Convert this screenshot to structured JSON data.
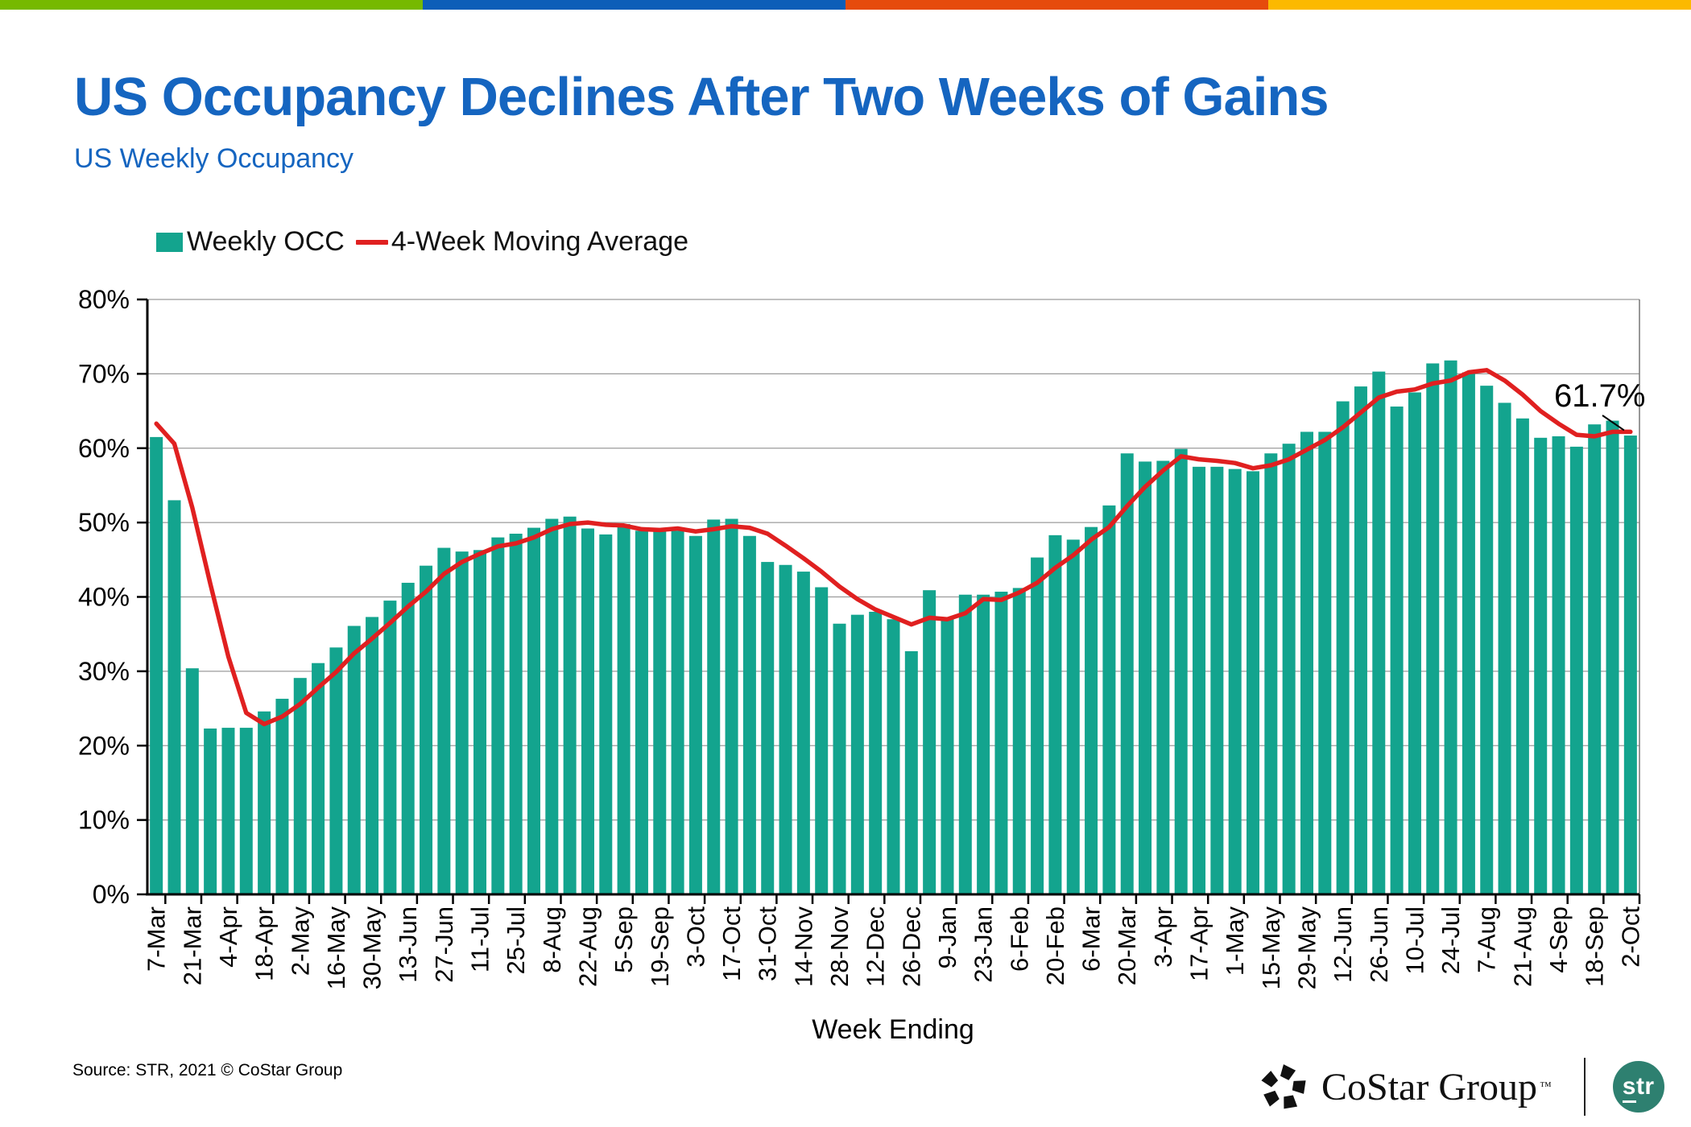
{
  "top_bar": {
    "colors": [
      "#76B900",
      "#0D5EB8",
      "#E64B0C",
      "#FCB900"
    ]
  },
  "header": {
    "title": "US Occupancy Declines After Two Weeks of Gains",
    "subtitle": "US Weekly Occupancy"
  },
  "legend": {
    "items": [
      {
        "label": "Weekly OCC",
        "color": "#13A48E",
        "type": "square"
      },
      {
        "label": "4-Week Moving Average",
        "color": "#E02020",
        "type": "line"
      }
    ]
  },
  "chart_data": {
    "type": "bar",
    "title": "US Weekly Occupancy",
    "xlabel": "Week Ending",
    "ylabel": "",
    "ylim": [
      0,
      80
    ],
    "grid": "horizontal",
    "legend_position": "top-left",
    "y_ticks": [
      "0%",
      "10%",
      "20%",
      "30%",
      "40%",
      "50%",
      "60%",
      "70%",
      "80%"
    ],
    "x_label_every": 2,
    "categories": [
      "7-Mar",
      "14-Mar",
      "21-Mar",
      "28-Mar",
      "4-Apr",
      "11-Apr",
      "18-Apr",
      "25-Apr",
      "2-May",
      "9-May",
      "16-May",
      "23-May",
      "30-May",
      "6-Jun",
      "13-Jun",
      "20-Jun",
      "27-Jun",
      "4-Jul",
      "11-Jul",
      "18-Jul",
      "25-Jul",
      "1-Aug",
      "8-Aug",
      "15-Aug",
      "22-Aug",
      "29-Aug",
      "5-Sep",
      "12-Sep",
      "19-Sep",
      "26-Sep",
      "3-Oct",
      "10-Oct",
      "17-Oct",
      "24-Oct",
      "31-Oct",
      "7-Nov",
      "14-Nov",
      "21-Nov",
      "28-Nov",
      "5-Dec",
      "12-Dec",
      "19-Dec",
      "26-Dec",
      "2-Jan",
      "9-Jan",
      "16-Jan",
      "23-Jan",
      "30-Jan",
      "6-Feb",
      "13-Feb",
      "20-Feb",
      "27-Feb",
      "6-Mar",
      "13-Mar",
      "20-Mar",
      "27-Mar",
      "3-Apr",
      "10-Apr",
      "17-Apr",
      "24-Apr",
      "1-May",
      "8-May",
      "15-May",
      "22-May",
      "29-May",
      "5-Jun",
      "12-Jun",
      "19-Jun",
      "26-Jun",
      "3-Jul",
      "10-Jul",
      "17-Jul",
      "24-Jul",
      "31-Jul",
      "7-Aug",
      "14-Aug",
      "21-Aug",
      "28-Aug",
      "4-Sep",
      "11-Sep",
      "18-Sep",
      "25-Sep",
      "2-Oct"
    ],
    "series": [
      {
        "name": "Weekly OCC",
        "type": "bar",
        "color": "#13A48E",
        "values": [
          61.5,
          53.0,
          30.4,
          22.3,
          22.4,
          22.4,
          24.6,
          26.3,
          29.1,
          31.1,
          33.2,
          36.1,
          37.3,
          39.5,
          41.9,
          44.2,
          46.6,
          46.1,
          46.3,
          48.0,
          48.5,
          49.3,
          50.5,
          50.8,
          49.2,
          48.4,
          49.8,
          48.9,
          49.0,
          48.9,
          48.2,
          50.4,
          50.5,
          48.2,
          44.7,
          44.3,
          43.4,
          41.3,
          36.4,
          37.6,
          38.0,
          37.0,
          32.7,
          40.9,
          37.2,
          40.3,
          40.3,
          40.7,
          41.2,
          45.3,
          48.3,
          47.7,
          49.4,
          52.3,
          59.3,
          58.2,
          58.3,
          59.9,
          57.5,
          57.5,
          57.2,
          56.9,
          59.3,
          60.6,
          62.2,
          62.2,
          66.3,
          68.3,
          70.3,
          65.6,
          67.5,
          71.4,
          71.8,
          70.2,
          68.4,
          66.1,
          64.0,
          61.4,
          61.6,
          60.2,
          63.2,
          63.7,
          61.7
        ]
      },
      {
        "name": "4-Week Moving Average",
        "type": "line",
        "color": "#E02020",
        "values": [
          63.3,
          60.6,
          52.0,
          41.8,
          32.0,
          24.4,
          22.9,
          23.9,
          25.6,
          27.8,
          29.9,
          32.4,
          34.4,
          36.5,
          38.7,
          40.7,
          43.1,
          44.7,
          45.8,
          46.8,
          47.2,
          48.0,
          49.1,
          49.8,
          50.0,
          49.7,
          49.6,
          49.1,
          49.0,
          49.2,
          48.8,
          49.1,
          49.5,
          49.3,
          48.5,
          46.9,
          45.2,
          43.4,
          41.4,
          39.7,
          38.3,
          37.3,
          36.3,
          37.2,
          37.0,
          37.8,
          39.7,
          39.6,
          40.6,
          41.9,
          43.9,
          45.6,
          47.7,
          49.4,
          52.2,
          54.8,
          57.0,
          58.9,
          58.5,
          58.3,
          58.0,
          57.3,
          57.7,
          58.5,
          59.8,
          61.1,
          62.8,
          64.8,
          66.8,
          67.6,
          67.9,
          68.7,
          69.1,
          70.2,
          70.5,
          69.1,
          67.2,
          65.0,
          63.3,
          61.8,
          61.6,
          62.2,
          62.2
        ]
      }
    ],
    "annotation": {
      "text": "61.7%"
    }
  },
  "source": {
    "text": "Source: STR, 2021 © CoStar Group"
  },
  "footer_logos": {
    "costar_text": "CoStar Group",
    "costar_tm": "™",
    "str_text_s": "s",
    "str_text_tr": "tr",
    "str_circle_color": "#2E8070"
  }
}
